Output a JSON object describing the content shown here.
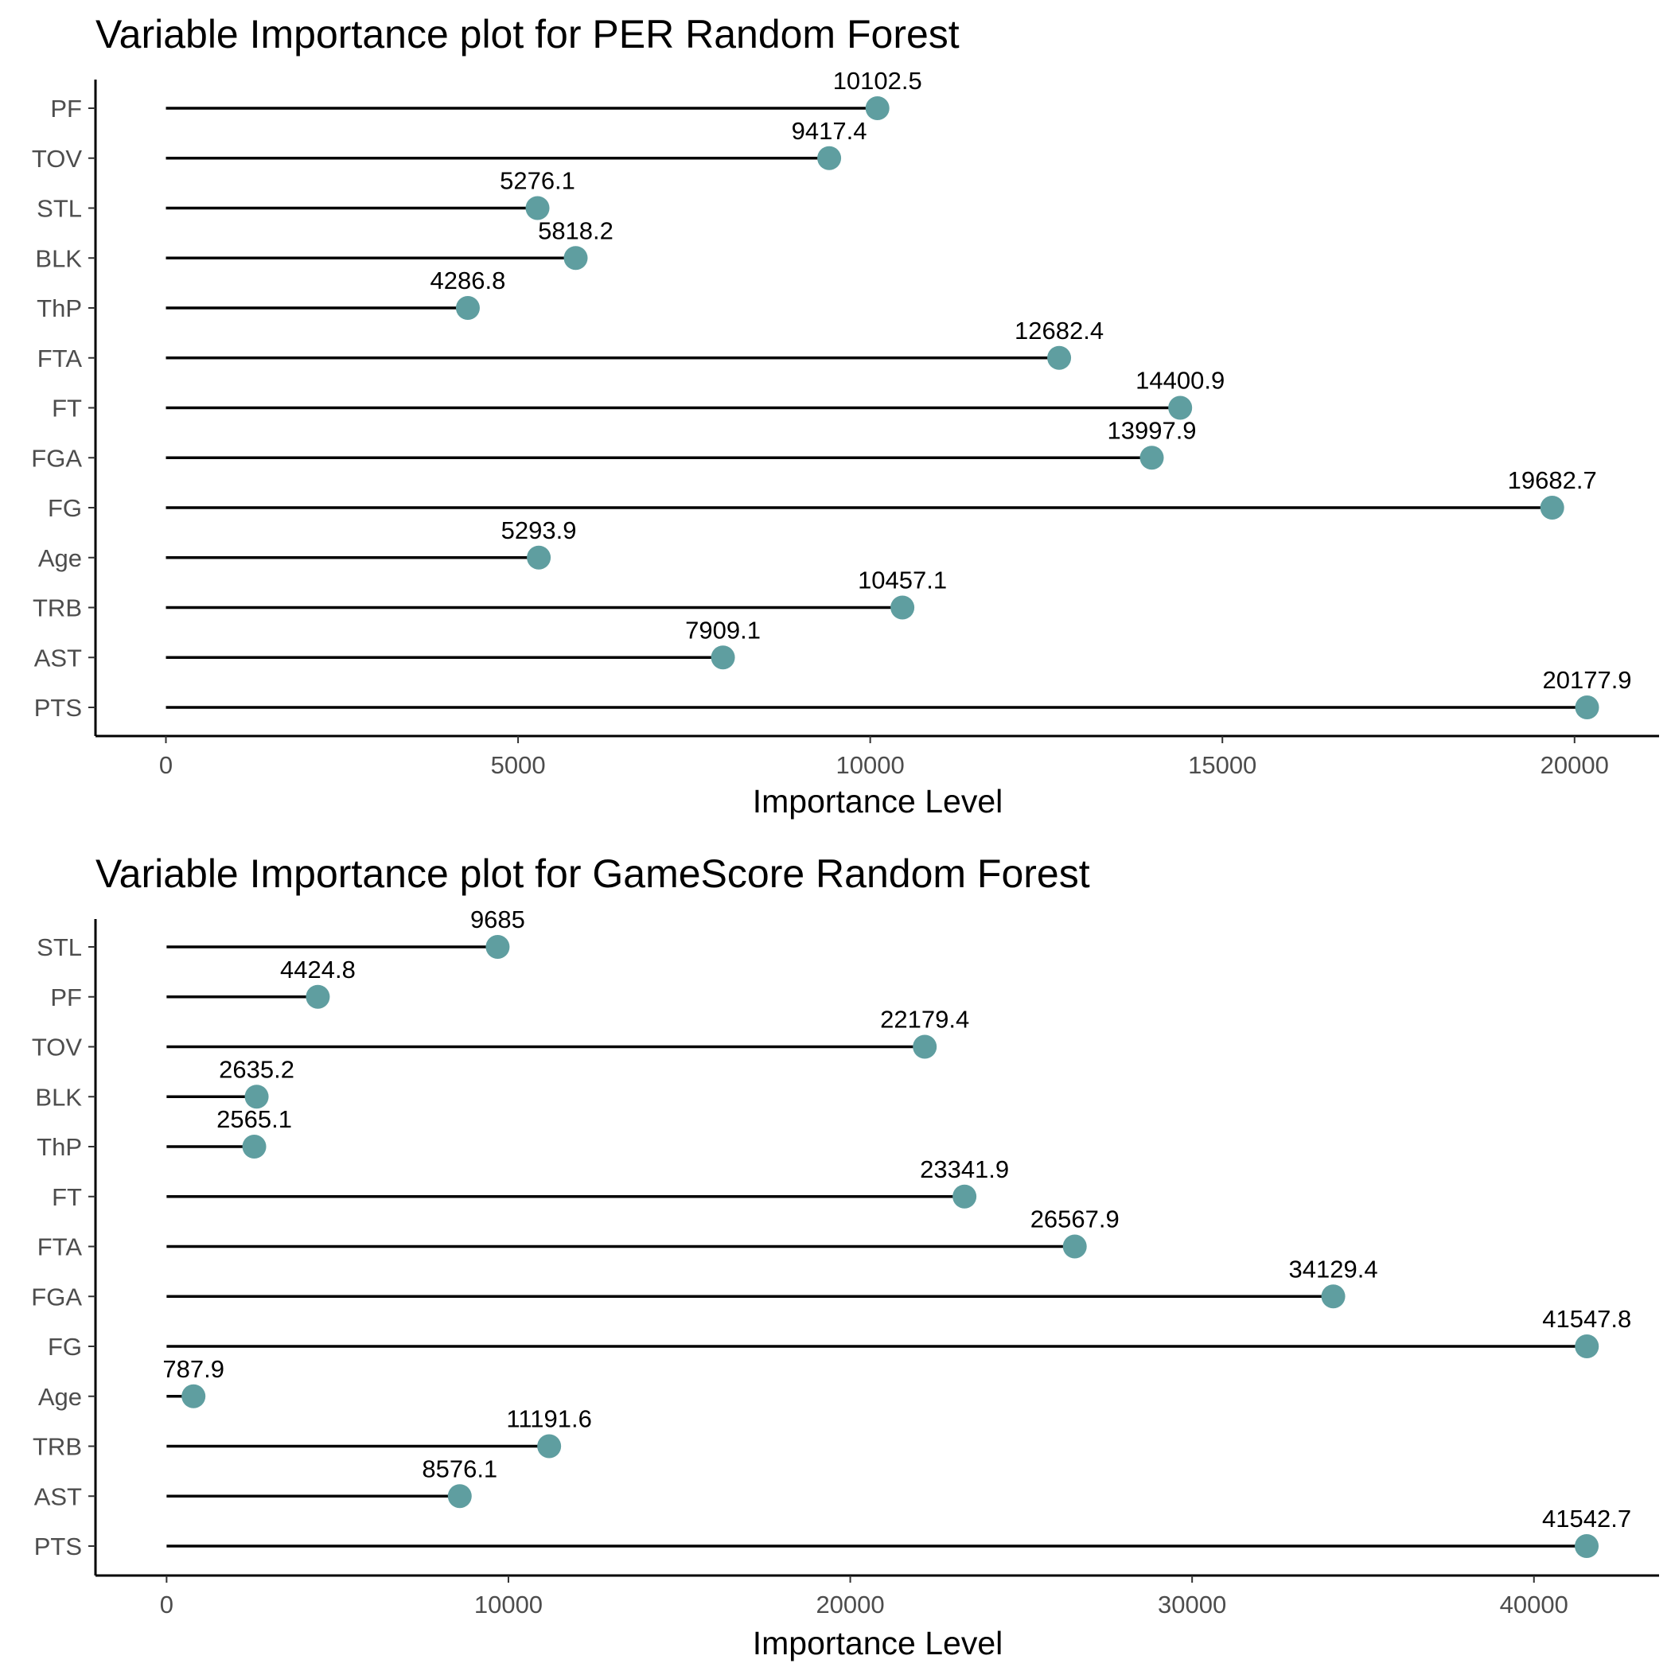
{
  "chart_data": [
    {
      "type": "lollipop",
      "title": "Variable Importance plot for PER Random Forest",
      "xlabel": "Importance Level",
      "ylabel": "",
      "categories": [
        "PF",
        "TOV",
        "STL",
        "BLK",
        "ThP",
        "FTA",
        "FT",
        "FGA",
        "FG",
        "Age",
        "TRB",
        "AST",
        "PTS"
      ],
      "values": [
        10102.5,
        9417.4,
        5276.1,
        5818.2,
        4286.8,
        12682.4,
        14400.9,
        13997.9,
        19682.7,
        5293.9,
        10457.1,
        7909.1,
        20177.9
      ],
      "labels": [
        "10102.5",
        "9417.4",
        "5276.1",
        "5818.2",
        "4286.8",
        "12682.4",
        "14400.9",
        "13997.9",
        "19682.7",
        "5293.9",
        "10457.1",
        "7909.1",
        "20177.9"
      ],
      "xticks": [
        0,
        5000,
        10000,
        15000,
        20000
      ],
      "xtick_labels": [
        "0",
        "5000",
        "10000",
        "15000",
        "20000"
      ],
      "xlim": [
        -1000,
        21200
      ],
      "point_color": "#5f9ea0",
      "grid": false
    },
    {
      "type": "lollipop",
      "title": "Variable Importance plot for GameScore Random Forest",
      "xlabel": "Importance Level",
      "ylabel": "",
      "categories": [
        "STL",
        "PF",
        "TOV",
        "BLK",
        "ThP",
        "FT",
        "FTA",
        "FGA",
        "FG",
        "Age",
        "TRB",
        "AST",
        "PTS"
      ],
      "values": [
        9685,
        4424.8,
        22179.4,
        2635.2,
        2565.1,
        23341.9,
        26567.9,
        34129.4,
        41547.8,
        787.9,
        11191.6,
        8576.1,
        41542.7
      ],
      "labels": [
        "9685",
        "4424.8",
        "22179.4",
        "2635.2",
        "2565.1",
        "23341.9",
        "26567.9",
        "34129.4",
        "41547.8",
        "787.9",
        "11191.6",
        "8576.1",
        "41542.7"
      ],
      "xticks": [
        0,
        10000,
        20000,
        30000,
        40000
      ],
      "xtick_labels": [
        "0",
        "10000",
        "20000",
        "30000",
        "40000"
      ],
      "xlim": [
        -2080,
        43660
      ],
      "point_color": "#5f9ea0",
      "grid": false
    }
  ]
}
